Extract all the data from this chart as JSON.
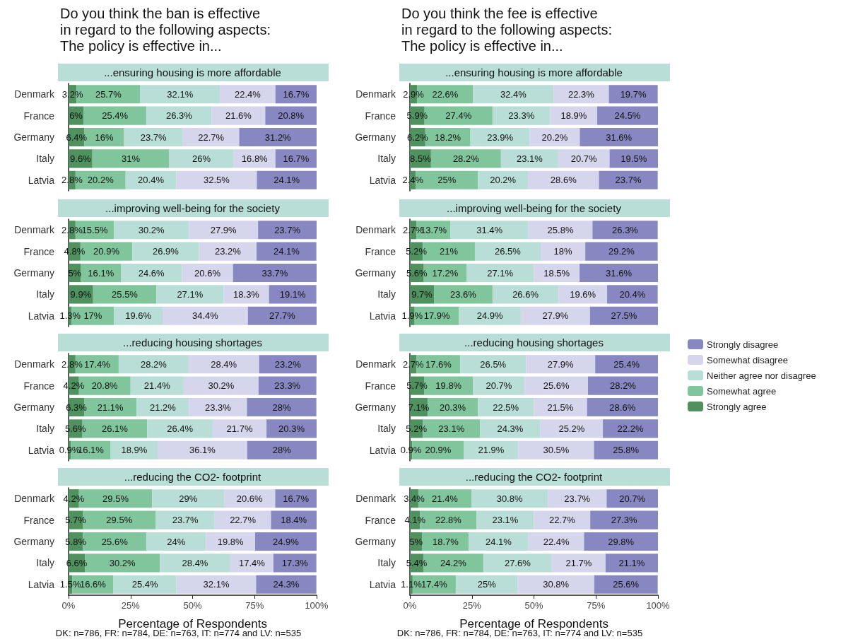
{
  "chart_data": [
    {
      "type": "bar",
      "orientation": "horizontal",
      "stacked": true,
      "title": "Do you think the ban is effective\nin regard to the following aspects:\nThe policy is effective in...",
      "subtitle": "...ensuring housing is more affordable",
      "categories": [
        "Denmark",
        "France",
        "Germany",
        "Italy",
        "Latvia"
      ],
      "xlim": [
        0,
        100
      ],
      "tick_labels": "y",
      "series": [
        {
          "color": "#4f915f",
          "values": [
            3.2,
            6,
            6.4,
            9.6,
            2.8
          ],
          "value_labels": [
            "3.2%",
            "6%",
            "6.4%",
            "9.6%",
            "2.8%"
          ]
        },
        {
          "color": "#80c59b",
          "values": [
            25.7,
            25.4,
            16,
            31,
            20.2
          ],
          "value_labels": [
            "25.7%",
            "25.4%",
            "16%",
            "31%",
            "20.2%"
          ]
        },
        {
          "color": "#b9ddd7",
          "values": [
            32.1,
            26.3,
            23.7,
            26,
            20.4
          ],
          "value_labels": [
            "32.1%",
            "26.3%",
            "23.7%",
            "26%",
            "20.4%"
          ]
        },
        {
          "color": "#d5d5ec",
          "values": [
            22.4,
            21.6,
            22.7,
            16.8,
            32.5
          ],
          "value_labels": [
            "22.4%",
            "21.6%",
            "22.7%",
            "16.8%",
            "32.5%"
          ]
        },
        {
          "color": "#8787c1",
          "values": [
            16.7,
            20.8,
            31.2,
            16.7,
            24.1
          ],
          "value_labels": [
            "16.7%",
            "20.8%",
            "31.2%",
            "16.7%",
            "24.1%"
          ]
        }
      ]
    },
    {
      "type": "bar",
      "orientation": "horizontal",
      "stacked": true,
      "title": "Do you think the fee is effective\nin regard to the following aspects:\nThe policy is effective in...",
      "subtitle": "...ensuring housing is more affordable",
      "categories": [
        "Denmark",
        "France",
        "Germany",
        "Italy",
        "Latvia"
      ],
      "xlim": [
        0,
        100
      ],
      "tick_labels": "y",
      "series": [
        {
          "color": "#4f915f",
          "values": [
            2.9,
            5.9,
            6.2,
            8.5,
            2.4
          ],
          "value_labels": [
            "2.9%",
            "5.9%",
            "6.2%",
            "8.5%",
            "2.4%"
          ]
        },
        {
          "color": "#80c59b",
          "values": [
            22.6,
            27.4,
            18.2,
            28.2,
            25
          ],
          "value_labels": [
            "22.6%",
            "27.4%",
            "18.2%",
            "28.2%",
            "25%"
          ]
        },
        {
          "color": "#b9ddd7",
          "values": [
            32.4,
            23.3,
            23.9,
            23.1,
            20.2
          ],
          "value_labels": [
            "32.4%",
            "23.3%",
            "23.9%",
            "23.1%",
            "20.2%"
          ]
        },
        {
          "color": "#d5d5ec",
          "values": [
            22.3,
            18.9,
            20.2,
            20.7,
            28.6
          ],
          "value_labels": [
            "22.3%",
            "18.9%",
            "20.2%",
            "20.7%",
            "28.6%"
          ]
        },
        {
          "color": "#8787c1",
          "values": [
            19.7,
            24.5,
            31.6,
            19.5,
            23.7
          ],
          "value_labels": [
            "19.7%",
            "24.5%",
            "31.6%",
            "19.5%",
            "23.7%"
          ]
        }
      ]
    },
    {
      "type": "bar",
      "orientation": "horizontal",
      "stacked": true,
      "subtitle": "...improving well-being for the society",
      "categories": [
        "Denmark",
        "France",
        "Germany",
        "Italy",
        "Latvia"
      ],
      "xlim": [
        0,
        100
      ],
      "tick_labels": "y",
      "series": [
        {
          "color": "#4f915f",
          "values": [
            2.8,
            4.8,
            5,
            9.9,
            1.3
          ],
          "value_labels": [
            "2.8%",
            "4.8%",
            "5%",
            "9.9%",
            "1.3%"
          ]
        },
        {
          "color": "#80c59b",
          "values": [
            15.5,
            20.9,
            16.1,
            25.5,
            17
          ],
          "value_labels": [
            "15.5%",
            "20.9%",
            "16.1%",
            "25.5%",
            "17%"
          ]
        },
        {
          "color": "#b9ddd7",
          "values": [
            30.2,
            26.9,
            24.6,
            27.1,
            19.6
          ],
          "value_labels": [
            "30.2%",
            "26.9%",
            "24.6%",
            "27.1%",
            "19.6%"
          ]
        },
        {
          "color": "#d5d5ec",
          "values": [
            27.9,
            23.2,
            20.6,
            18.3,
            34.4
          ],
          "value_labels": [
            "27.9%",
            "23.2%",
            "20.6%",
            "18.3%",
            "34.4%"
          ]
        },
        {
          "color": "#8787c1",
          "values": [
            23.7,
            24.1,
            33.7,
            19.1,
            27.7
          ],
          "value_labels": [
            "23.7%",
            "24.1%",
            "33.7%",
            "19.1%",
            "27.7%"
          ]
        }
      ]
    },
    {
      "type": "bar",
      "orientation": "horizontal",
      "stacked": true,
      "subtitle": "...improving well-being for the society",
      "categories": [
        "Denmark",
        "France",
        "Germany",
        "Italy",
        "Latvia"
      ],
      "xlim": [
        0,
        100
      ],
      "tick_labels": "y",
      "series": [
        {
          "color": "#4f915f",
          "values": [
            2.7,
            5.2,
            5.6,
            9.7,
            1.9
          ],
          "value_labels": [
            "2.7%",
            "5.2%",
            "5.6%",
            "9.7%",
            "1.9%"
          ]
        },
        {
          "color": "#80c59b",
          "values": [
            13.7,
            21,
            17.2,
            23.6,
            17.9
          ],
          "value_labels": [
            "13.7%",
            "21%",
            "17.2%",
            "23.6%",
            "17.9%"
          ]
        },
        {
          "color": "#b9ddd7",
          "values": [
            31.4,
            26.5,
            27.1,
            26.6,
            24.9
          ],
          "value_labels": [
            "31.4%",
            "26.5%",
            "27.1%",
            "26.6%",
            "24.9%"
          ]
        },
        {
          "color": "#d5d5ec",
          "values": [
            25.8,
            18,
            18.5,
            19.6,
            27.9
          ],
          "value_labels": [
            "25.8%",
            "18%",
            "18.5%",
            "19.6%",
            "27.9%"
          ]
        },
        {
          "color": "#8787c1",
          "values": [
            26.3,
            29.2,
            31.6,
            20.4,
            27.5
          ],
          "value_labels": [
            "26.3%",
            "29.2%",
            "31.6%",
            "20.4%",
            "27.5%"
          ]
        }
      ]
    },
    {
      "type": "bar",
      "orientation": "horizontal",
      "stacked": true,
      "subtitle": "...reducing housing shortages",
      "categories": [
        "Denmark",
        "France",
        "Germany",
        "Italy",
        "Latvia"
      ],
      "xlim": [
        0,
        100
      ],
      "tick_labels": "y",
      "series": [
        {
          "color": "#4f915f",
          "values": [
            2.8,
            4.2,
            6.3,
            5.6,
            0.9
          ],
          "value_labels": [
            "2.8%",
            "4.2%",
            "6.3%",
            "5.6%",
            "0.9%"
          ]
        },
        {
          "color": "#80c59b",
          "values": [
            17.4,
            20.8,
            21.1,
            26.1,
            16.1
          ],
          "value_labels": [
            "17.4%",
            "20.8%",
            "21.1%",
            "26.1%",
            "16.1%"
          ]
        },
        {
          "color": "#b9ddd7",
          "values": [
            28.2,
            21.4,
            21.2,
            26.4,
            18.9
          ],
          "value_labels": [
            "28.2%",
            "21.4%",
            "21.2%",
            "26.4%",
            "18.9%"
          ]
        },
        {
          "color": "#d5d5ec",
          "values": [
            28.4,
            30.2,
            23.3,
            21.7,
            36.1
          ],
          "value_labels": [
            "28.4%",
            "30.2%",
            "23.3%",
            "21.7%",
            "36.1%"
          ]
        },
        {
          "color": "#8787c1",
          "values": [
            23.2,
            23.3,
            28,
            20.3,
            28
          ],
          "value_labels": [
            "23.2%",
            "23.3%",
            "28%",
            "20.3%",
            "28%"
          ]
        }
      ]
    },
    {
      "type": "bar",
      "orientation": "horizontal",
      "stacked": true,
      "subtitle": "...reducing housing shortages",
      "categories": [
        "Denmark",
        "France",
        "Germany",
        "Italy",
        "Latvia"
      ],
      "xlim": [
        0,
        100
      ],
      "tick_labels": "y",
      "legend": "right",
      "series": [
        {
          "name": "Strongly agree",
          "color": "#4f915f",
          "values": [
            2.7,
            5.7,
            7.1,
            5.2,
            0.9
          ],
          "value_labels": [
            "2.7%",
            "5.7%",
            "7.1%",
            "5.2%",
            "0.9%"
          ]
        },
        {
          "name": "Somewhat agree",
          "color": "#80c59b",
          "values": [
            17.6,
            19.8,
            20.3,
            23.1,
            20.9
          ],
          "value_labels": [
            "17.6%",
            "19.8%",
            "20.3%",
            "23.1%",
            "20.9%"
          ]
        },
        {
          "name": "Neither agree nor disagree",
          "color": "#b9ddd7",
          "values": [
            26.5,
            20.7,
            22.5,
            24.3,
            21.9
          ],
          "value_labels": [
            "26.5%",
            "20.7%",
            "22.5%",
            "24.3%",
            "21.9%"
          ]
        },
        {
          "name": "Somewhat disagree",
          "color": "#d5d5ec",
          "values": [
            27.9,
            25.6,
            21.5,
            25.2,
            30.5
          ],
          "value_labels": [
            "27.9%",
            "25.6%",
            "21.5%",
            "25.2%",
            "30.5%"
          ]
        },
        {
          "name": "Strongly disagree",
          "color": "#8787c1",
          "values": [
            25.4,
            28.2,
            28.6,
            22.2,
            25.8
          ],
          "value_labels": [
            "25.4%",
            "28.2%",
            "28.6%",
            "22.2%",
            "25.8%"
          ]
        }
      ]
    },
    {
      "type": "bar",
      "orientation": "horizontal",
      "stacked": true,
      "subtitle": "...reducing the CO2- footprint",
      "xlabel": "Percentage of Respondents",
      "annotations": [
        "DK: n=786, FR: n=784, DE: n=763, IT: n=774 and LV: n=535"
      ],
      "categories": [
        "Denmark",
        "France",
        "Germany",
        "Italy",
        "Latvia"
      ],
      "xlim": [
        0,
        100
      ],
      "xticks": [
        {
          "value": 0,
          "label": "0%"
        },
        {
          "value": 25,
          "label": "25%"
        },
        {
          "value": 50,
          "label": "50%"
        },
        {
          "value": 75,
          "label": "75%"
        },
        {
          "value": 100,
          "label": "100%"
        }
      ],
      "series": [
        {
          "color": "#4f915f",
          "values": [
            4.2,
            5.7,
            5.8,
            6.6,
            1.5
          ],
          "value_labels": [
            "4.2%",
            "5.7%",
            "5.8%",
            "6.6%",
            "1.5%"
          ]
        },
        {
          "color": "#80c59b",
          "values": [
            29.5,
            29.5,
            25.6,
            30.2,
            16.6
          ],
          "value_labels": [
            "29.5%",
            "29.5%",
            "25.6%",
            "30.2%",
            "16.6%"
          ]
        },
        {
          "color": "#b9ddd7",
          "values": [
            29,
            23.7,
            24,
            28.4,
            25.4
          ],
          "value_labels": [
            "29%",
            "23.7%",
            "24%",
            "28.4%",
            "25.4%"
          ]
        },
        {
          "color": "#d5d5ec",
          "values": [
            20.6,
            22.7,
            19.8,
            17.4,
            32.1
          ],
          "value_labels": [
            "20.6%",
            "22.7%",
            "19.8%",
            "17.4%",
            "32.1%"
          ]
        },
        {
          "color": "#8787c1",
          "values": [
            16.7,
            18.4,
            24.9,
            17.3,
            24.3
          ],
          "value_labels": [
            "16.7%",
            "18.4%",
            "24.9%",
            "17.3%",
            "24.3%"
          ]
        }
      ]
    },
    {
      "type": "bar",
      "orientation": "horizontal",
      "stacked": true,
      "subtitle": "...reducing the CO2- footprint",
      "xlabel": "Percentage of Respondents",
      "annotations": [
        "DK: n=786, FR: n=784, DE: n=763, IT: n=774 and LV: n=535"
      ],
      "categories": [
        "Denmark",
        "France",
        "Germany",
        "Italy",
        "Latvia"
      ],
      "xlim": [
        0,
        100
      ],
      "xticks": [
        {
          "value": 0,
          "label": "0%"
        },
        {
          "value": 25,
          "label": "25%"
        },
        {
          "value": 50,
          "label": "50%"
        },
        {
          "value": 75,
          "label": "75%"
        },
        {
          "value": 100,
          "label": "100%"
        }
      ],
      "series": [
        {
          "color": "#4f915f",
          "values": [
            3.4,
            4.1,
            5,
            5.4,
            1.1
          ],
          "value_labels": [
            "3.4%",
            "4.1%",
            "5%",
            "5.4%",
            "1.1%"
          ]
        },
        {
          "color": "#80c59b",
          "values": [
            21.4,
            22.8,
            18.7,
            24.2,
            17.4
          ],
          "value_labels": [
            "21.4%",
            "22.8%",
            "18.7%",
            "24.2%",
            "17.4%"
          ]
        },
        {
          "color": "#b9ddd7",
          "values": [
            30.8,
            23.1,
            24.1,
            27.6,
            25
          ],
          "value_labels": [
            "30.8%",
            "23.1%",
            "24.1%",
            "27.6%",
            "25%"
          ]
        },
        {
          "color": "#d5d5ec",
          "values": [
            23.7,
            22.7,
            22.4,
            21.7,
            30.8
          ],
          "value_labels": [
            "23.7%",
            "22.7%",
            "22.4%",
            "21.7%",
            "30.8%"
          ]
        },
        {
          "color": "#8787c1",
          "values": [
            20.7,
            27.3,
            29.8,
            21.1,
            25.6
          ],
          "value_labels": [
            "20.7%",
            "27.3%",
            "29.8%",
            "21.1%",
            "25.6%"
          ]
        }
      ]
    }
  ]
}
